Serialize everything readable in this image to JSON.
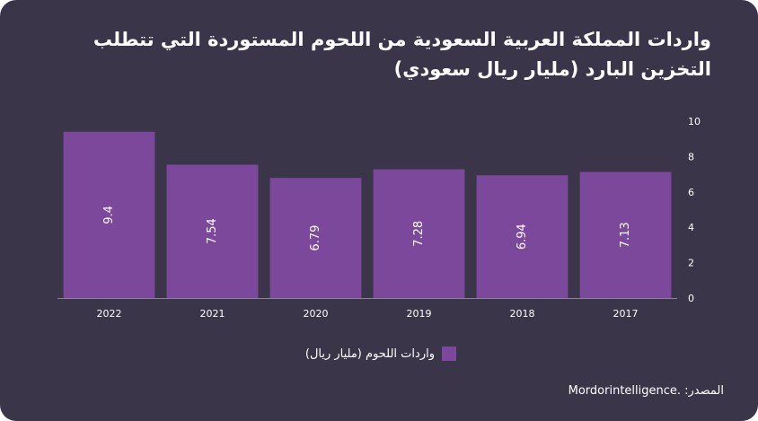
{
  "colors": {
    "background": "#3b3549",
    "bar": "#7b489b",
    "axis": "#8a8497"
  },
  "chart_data": {
    "type": "bar",
    "title": "واردات المملكة العربية السعودية من اللحوم المستوردة التي تتطلب التخزين البارد (مليار ريال سعودي)",
    "categories": [
      "2022",
      "2021",
      "2020",
      "2019",
      "2018",
      "2017"
    ],
    "series": [
      {
        "name": "واردات اللحوم (مليار ريال)",
        "values": [
          9.4,
          7.54,
          6.79,
          7.28,
          6.94,
          7.13
        ]
      }
    ],
    "data_labels": [
      "9.4",
      "7.54",
      "6.79",
      "7.28",
      "6.94",
      "7.13"
    ],
    "ylim": [
      0,
      10
    ],
    "yticks": [
      0,
      2,
      4,
      6,
      8,
      10
    ],
    "y_axis_side": "right",
    "grid": false,
    "legend_position": "bottom-center"
  },
  "source": {
    "label": "المصدر:",
    "value": "Mordorintelligence."
  }
}
